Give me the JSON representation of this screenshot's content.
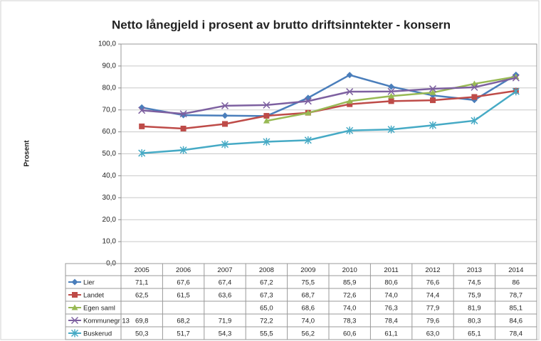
{
  "chart_data": {
    "type": "line",
    "title": "Netto lånegjeld i prosent av brutto driftsinntekter - konsern",
    "y_label": "Prosent",
    "categories": [
      "2005",
      "2006",
      "2007",
      "2008",
      "2009",
      "2010",
      "2011",
      "2012",
      "2013",
      "2014"
    ],
    "ylim": [
      0,
      100
    ],
    "yticks": [
      {
        "value": 0,
        "label": "0,0"
      },
      {
        "value": 10,
        "label": "10,0"
      },
      {
        "value": 20,
        "label": "20,0"
      },
      {
        "value": 30,
        "label": "30,0"
      },
      {
        "value": 40,
        "label": "40,0"
      },
      {
        "value": 50,
        "label": "50,0"
      },
      {
        "value": 60,
        "label": "60,0"
      },
      {
        "value": 70,
        "label": "70,0"
      },
      {
        "value": 80,
        "label": "80,0"
      },
      {
        "value": 90,
        "label": "90,0"
      },
      {
        "value": 100,
        "label": "100,0"
      }
    ],
    "grid": true,
    "series": [
      {
        "name": "Lier",
        "color": "#4a7ebb",
        "marker": "diamond",
        "values": [
          71.1,
          67.6,
          67.4,
          67.2,
          75.5,
          85.9,
          80.6,
          76.6,
          74.5,
          86
        ],
        "value_labels": [
          "71,1",
          "67,6",
          "67,4",
          "67,2",
          "75,5",
          "85,9",
          "80,6",
          "76,6",
          "74,5",
          "86"
        ]
      },
      {
        "name": "Landet",
        "color": "#be4b48",
        "marker": "square",
        "values": [
          62.5,
          61.5,
          63.6,
          67.3,
          68.7,
          72.6,
          74.0,
          74.4,
          75.9,
          78.7
        ],
        "value_labels": [
          "62,5",
          "61,5",
          "63,6",
          "67,3",
          "68,7",
          "72,6",
          "74,0",
          "74,4",
          "75,9",
          "78,7"
        ]
      },
      {
        "name": "Egen saml",
        "color": "#98b954",
        "marker": "triangle",
        "values": [
          null,
          null,
          null,
          65.0,
          68.6,
          74.0,
          76.3,
          77.9,
          81.9,
          85.1
        ],
        "value_labels": [
          null,
          null,
          null,
          "65,0",
          "68,6",
          "74,0",
          "76,3",
          "77,9",
          "81,9",
          "85,1"
        ]
      },
      {
        "name": "Kommunegr 13",
        "color": "#7d60a0",
        "marker": "x",
        "values": [
          69.8,
          68.2,
          71.9,
          72.2,
          74.0,
          78.3,
          78.4,
          79.6,
          80.3,
          84.6
        ],
        "value_labels": [
          "69,8",
          "68,2",
          "71,9",
          "72,2",
          "74,0",
          "78,3",
          "78,4",
          "79,6",
          "80,3",
          "84,6"
        ]
      },
      {
        "name": "Buskerud",
        "color": "#46aac5",
        "marker": "star",
        "values": [
          50.3,
          51.7,
          54.3,
          55.5,
          56.2,
          60.6,
          61.1,
          63.0,
          65.1,
          78.4
        ],
        "value_labels": [
          "50,3",
          "51,7",
          "54,3",
          "55,5",
          "56,2",
          "60,6",
          "61,1",
          "63,0",
          "65,1",
          "78,4"
        ]
      }
    ]
  }
}
